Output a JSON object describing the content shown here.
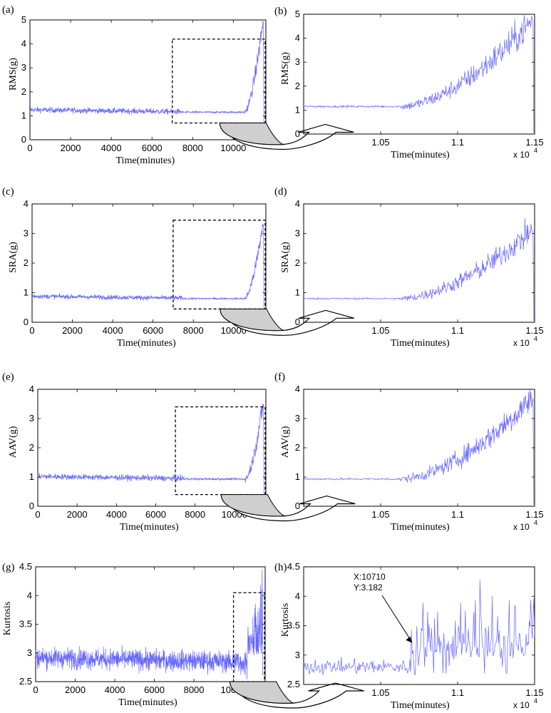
{
  "figure": {
    "panels": [
      {
        "label": "(a)",
        "type": "line",
        "ylabel": "RMS(g)",
        "xlabel": "Time(minutes)",
        "xlim": [
          0,
          11600
        ],
        "ylim": [
          0,
          5
        ],
        "xticks": [
          0,
          2000,
          4000,
          6000,
          8000,
          10000
        ],
        "xtick_labels": [
          "0",
          "2000",
          "4000",
          "6000",
          "8000",
          "10000"
        ],
        "yticks": [
          0,
          1,
          2,
          3,
          4,
          5
        ],
        "ytick_labels": [
          "0",
          "1",
          "2",
          "3",
          "4",
          "5"
        ],
        "series": [
          {
            "name": "RMS",
            "color": "#6666ff",
            "kind": "degradation",
            "base": 1.25,
            "flat": 1.15,
            "end": 4.9,
            "onset": 10550,
            "noise": 0.06,
            "jump_at": 7450
          }
        ],
        "zoom_box": {
          "x": [
            7000,
            11600
          ],
          "y": [
            0.7,
            4.2
          ]
        }
      },
      {
        "label": "(b)",
        "type": "line",
        "ylabel": "RMS(g)",
        "xlabel": "Time(minutes)",
        "multiplier": "x 10",
        "multiplier_exp": "4",
        "xlim": [
          10000,
          11500
        ],
        "ylim": [
          0,
          5
        ],
        "xticks": [
          10500,
          11000,
          11500
        ],
        "xtick_labels": [
          "1.05",
          "1.1",
          "1.15"
        ],
        "yticks": [
          0,
          1,
          2,
          3,
          4,
          5
        ],
        "ytick_labels": [
          "0",
          "1",
          "2",
          "3",
          "4",
          "5"
        ],
        "series": [
          {
            "name": "RMS",
            "color": "#6666ff",
            "kind": "zoom",
            "flat": 1.15,
            "end": 4.7,
            "onset": 10630,
            "noise": 0.18
          }
        ]
      },
      {
        "label": "(c)",
        "type": "line",
        "ylabel": "SRA(g)",
        "xlabel": "Time(minutes)",
        "xlim": [
          0,
          11600
        ],
        "ylim": [
          0,
          4
        ],
        "xticks": [
          0,
          2000,
          4000,
          6000,
          8000,
          10000
        ],
        "xtick_labels": [
          "0",
          "2000",
          "4000",
          "6000",
          "8000",
          "10000"
        ],
        "yticks": [
          0,
          1,
          2,
          3,
          4
        ],
        "ytick_labels": [
          "0",
          "1",
          "2",
          "3",
          "4"
        ],
        "series": [
          {
            "name": "SRA",
            "color": "#6666ff",
            "kind": "degradation",
            "base": 0.88,
            "flat": 0.8,
            "end": 3.3,
            "onset": 10550,
            "noise": 0.04,
            "jump_at": 7450
          }
        ],
        "zoom_box": {
          "x": [
            7000,
            11600
          ],
          "y": [
            0.45,
            3.45
          ]
        }
      },
      {
        "label": "(d)",
        "type": "line",
        "ylabel": "SRA(g)",
        "xlabel": "Time(minutes)",
        "multiplier": "x 10",
        "multiplier_exp": "4",
        "xlim": [
          10000,
          11500
        ],
        "ylim": [
          0,
          4
        ],
        "xticks": [
          10500,
          11000,
          11500
        ],
        "xtick_labels": [
          "1.05",
          "1.1",
          "1.15"
        ],
        "yticks": [
          0,
          1,
          2,
          3,
          4
        ],
        "ytick_labels": [
          "0",
          "1",
          "2",
          "3",
          "4"
        ],
        "series": [
          {
            "name": "SRA",
            "color": "#6666ff",
            "kind": "zoom",
            "flat": 0.8,
            "end": 3.1,
            "onset": 10630,
            "noise": 0.12
          }
        ]
      },
      {
        "label": "(e)",
        "type": "line",
        "ylabel": "AAV(g)",
        "xlabel": "Time(minutes)",
        "xlim": [
          0,
          11600
        ],
        "ylim": [
          0,
          4
        ],
        "xticks": [
          0,
          2000,
          4000,
          6000,
          8000,
          10000
        ],
        "xtick_labels": [
          "0",
          "2000",
          "4000",
          "6000",
          "8000",
          "10000"
        ],
        "yticks": [
          0,
          1,
          2,
          3,
          4
        ],
        "ytick_labels": [
          "0",
          "1",
          "2",
          "3",
          "4"
        ],
        "series": [
          {
            "name": "AAV",
            "color": "#6666ff",
            "kind": "degradation",
            "base": 1.02,
            "flat": 0.93,
            "end": 3.5,
            "onset": 10550,
            "noise": 0.05,
            "jump_at": 7450
          }
        ],
        "zoom_box": {
          "x": [
            7000,
            11600
          ],
          "y": [
            0.4,
            3.4
          ]
        }
      },
      {
        "label": "(f)",
        "type": "line",
        "ylabel": "AAV(g)",
        "xlabel": "Time(minutes)",
        "multiplier": "x 10",
        "multiplier_exp": "4",
        "xlim": [
          10000,
          11500
        ],
        "ylim": [
          0,
          4
        ],
        "xticks": [
          10500,
          11000,
          11500
        ],
        "xtick_labels": [
          "1.05",
          "1.1",
          "1.15"
        ],
        "yticks": [
          0,
          1,
          2,
          3,
          4
        ],
        "ytick_labels": [
          "0",
          "1",
          "2",
          "3",
          "4"
        ],
        "series": [
          {
            "name": "AAV",
            "color": "#6666ff",
            "kind": "zoom",
            "flat": 0.93,
            "end": 3.7,
            "onset": 10630,
            "noise": 0.14
          }
        ]
      },
      {
        "label": "(g)",
        "type": "line",
        "ylabel": "Kurtosis",
        "xlabel": "Time(minutes)",
        "xlim": [
          0,
          11600
        ],
        "ylim": [
          2.5,
          4.5
        ],
        "xticks": [
          0,
          2000,
          4000,
          6000,
          8000,
          10000
        ],
        "xtick_labels": [
          "0",
          "2000",
          "4000",
          "6000",
          "8000",
          "10000"
        ],
        "yticks": [
          2.5,
          3,
          3.5,
          4,
          4.5
        ],
        "ytick_labels": [
          "2.5",
          "3",
          "3.5",
          "4",
          "4.5"
        ],
        "series": [
          {
            "name": "Kurtosis",
            "color": "#6666ff",
            "kind": "kurtosis",
            "base": 2.92,
            "noise": 0.09,
            "onset": 10700
          }
        ],
        "zoom_box": {
          "x": [
            10000,
            11600
          ],
          "y": [
            2.5,
            4.05
          ]
        }
      },
      {
        "label": "(h)",
        "type": "line",
        "ylabel": "Kurtosis",
        "xlabel": "Time(minutes)",
        "multiplier": "x 10",
        "multiplier_exp": "4",
        "xlim": [
          10000,
          11500
        ],
        "ylim": [
          2.5,
          4.5
        ],
        "xticks": [
          10500,
          11000,
          11500
        ],
        "xtick_labels": [
          "1.05",
          "1.1",
          "1.15"
        ],
        "yticks": [
          2.5,
          3,
          3.5,
          4,
          4.5
        ],
        "ytick_labels": [
          "2.5",
          "3",
          "3.5",
          "4",
          "4.5"
        ],
        "series": [
          {
            "name": "Kurtosis",
            "color": "#6666ff",
            "kind": "kurtzoom",
            "base": 2.8,
            "noise": 0.06,
            "onset": 10700
          }
        ],
        "datatip": {
          "x": 10710,
          "y": 3.182,
          "line1": "X:10710",
          "line2": "Y:3.182"
        }
      }
    ]
  }
}
